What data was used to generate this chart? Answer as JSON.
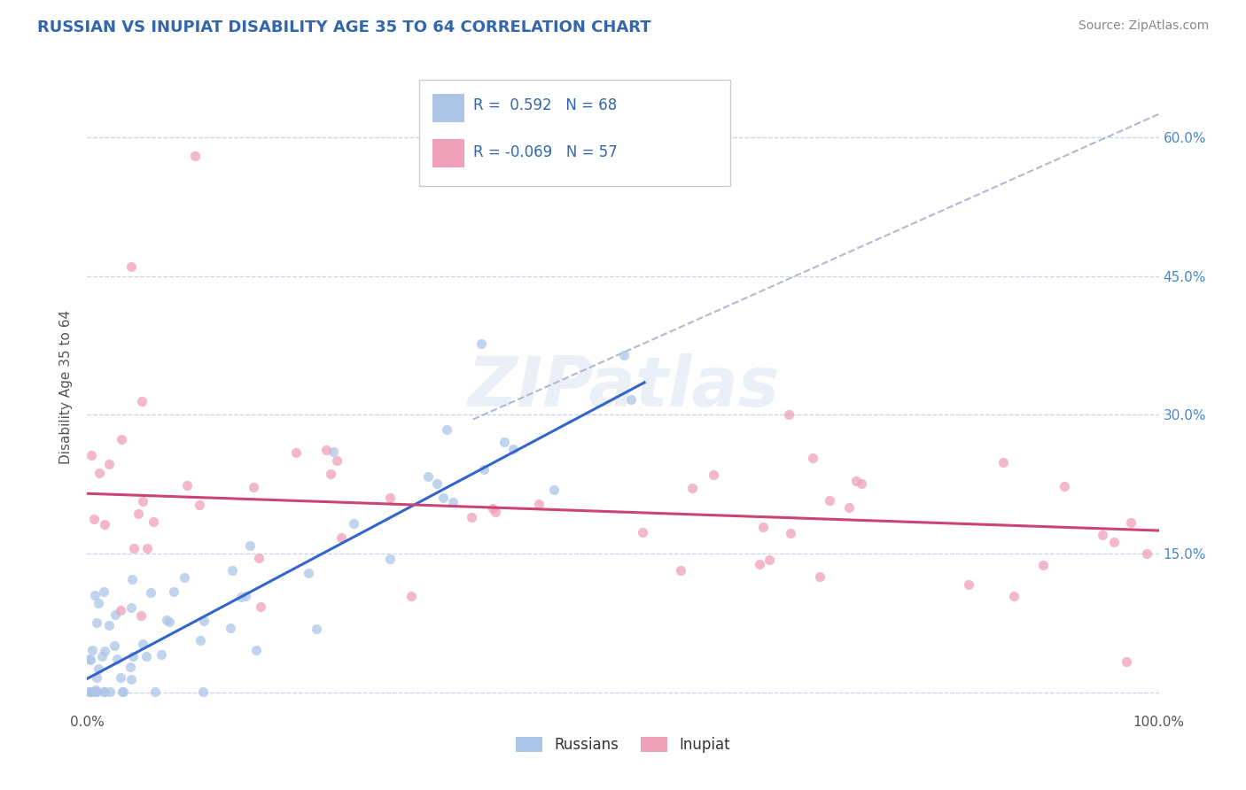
{
  "title": "RUSSIAN VS INUPIAT DISABILITY AGE 35 TO 64 CORRELATION CHART",
  "source_text": "Source: ZipAtlas.com",
  "ylabel": "Disability Age 35 to 64",
  "xlim": [
    0.0,
    1.0
  ],
  "ylim": [
    -0.02,
    0.68
  ],
  "russian_R": 0.592,
  "russian_N": 68,
  "inupiat_R": -0.069,
  "inupiat_N": 57,
  "watermark": "ZIPatlas",
  "russian_scatter_color": "#adc6e8",
  "russian_line_color": "#3366cc",
  "inupiat_scatter_color": "#f0a0b8",
  "inupiat_line_color": "#cc4477",
  "dash_line_color": "#aaaacc",
  "background_color": "#ffffff",
  "grid_color": "#c8d4e8",
  "title_color": "#3366aa",
  "right_tick_color": "#4488cc",
  "left_tick_color": "#888888",
  "source_color": "#888888",
  "legend_text_color": "#3366aa",
  "bottom_legend_color": "#333333",
  "russian_line_start_x": 0.0,
  "russian_line_start_y": 0.015,
  "russian_line_end_x": 0.52,
  "russian_line_end_y": 0.335,
  "inupiat_line_start_x": 0.0,
  "inupiat_line_start_y": 0.215,
  "inupiat_line_end_x": 1.0,
  "inupiat_line_end_y": 0.175,
  "dash_line_start_x": 0.36,
  "dash_line_start_y": 0.295,
  "dash_line_end_x": 1.0,
  "dash_line_end_y": 0.625,
  "seed_russian": 42,
  "seed_inupiat": 77
}
